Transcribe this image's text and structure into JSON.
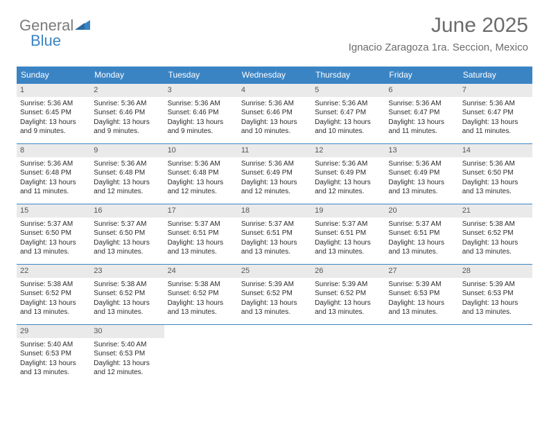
{
  "logo": {
    "text1": "General",
    "text2": "Blue",
    "color1": "#7a7a7a",
    "color2": "#3b84c4"
  },
  "header": {
    "title": "June 2025",
    "subtitle": "Ignacio Zaragoza 1ra. Seccion, Mexico",
    "title_fontsize": 30,
    "subtitle_fontsize": 15,
    "title_color": "#6b6b6b"
  },
  "calendar": {
    "type": "table",
    "header_bg": "#3b84c4",
    "header_fg": "#ffffff",
    "row_divider_color": "#3b84c4",
    "daynum_bg": "#eaeaea",
    "daynum_color": "#555555",
    "body_fontsize": 10,
    "columns": [
      "Sunday",
      "Monday",
      "Tuesday",
      "Wednesday",
      "Thursday",
      "Friday",
      "Saturday"
    ],
    "weeks": [
      [
        {
          "n": "1",
          "sr": "5:36 AM",
          "ss": "6:45 PM",
          "dl": "13 hours and 9 minutes."
        },
        {
          "n": "2",
          "sr": "5:36 AM",
          "ss": "6:46 PM",
          "dl": "13 hours and 9 minutes."
        },
        {
          "n": "3",
          "sr": "5:36 AM",
          "ss": "6:46 PM",
          "dl": "13 hours and 9 minutes."
        },
        {
          "n": "4",
          "sr": "5:36 AM",
          "ss": "6:46 PM",
          "dl": "13 hours and 10 minutes."
        },
        {
          "n": "5",
          "sr": "5:36 AM",
          "ss": "6:47 PM",
          "dl": "13 hours and 10 minutes."
        },
        {
          "n": "6",
          "sr": "5:36 AM",
          "ss": "6:47 PM",
          "dl": "13 hours and 11 minutes."
        },
        {
          "n": "7",
          "sr": "5:36 AM",
          "ss": "6:47 PM",
          "dl": "13 hours and 11 minutes."
        }
      ],
      [
        {
          "n": "8",
          "sr": "5:36 AM",
          "ss": "6:48 PM",
          "dl": "13 hours and 11 minutes."
        },
        {
          "n": "9",
          "sr": "5:36 AM",
          "ss": "6:48 PM",
          "dl": "13 hours and 12 minutes."
        },
        {
          "n": "10",
          "sr": "5:36 AM",
          "ss": "6:48 PM",
          "dl": "13 hours and 12 minutes."
        },
        {
          "n": "11",
          "sr": "5:36 AM",
          "ss": "6:49 PM",
          "dl": "13 hours and 12 minutes."
        },
        {
          "n": "12",
          "sr": "5:36 AM",
          "ss": "6:49 PM",
          "dl": "13 hours and 12 minutes."
        },
        {
          "n": "13",
          "sr": "5:36 AM",
          "ss": "6:49 PM",
          "dl": "13 hours and 13 minutes."
        },
        {
          "n": "14",
          "sr": "5:36 AM",
          "ss": "6:50 PM",
          "dl": "13 hours and 13 minutes."
        }
      ],
      [
        {
          "n": "15",
          "sr": "5:37 AM",
          "ss": "6:50 PM",
          "dl": "13 hours and 13 minutes."
        },
        {
          "n": "16",
          "sr": "5:37 AM",
          "ss": "6:50 PM",
          "dl": "13 hours and 13 minutes."
        },
        {
          "n": "17",
          "sr": "5:37 AM",
          "ss": "6:51 PM",
          "dl": "13 hours and 13 minutes."
        },
        {
          "n": "18",
          "sr": "5:37 AM",
          "ss": "6:51 PM",
          "dl": "13 hours and 13 minutes."
        },
        {
          "n": "19",
          "sr": "5:37 AM",
          "ss": "6:51 PM",
          "dl": "13 hours and 13 minutes."
        },
        {
          "n": "20",
          "sr": "5:37 AM",
          "ss": "6:51 PM",
          "dl": "13 hours and 13 minutes."
        },
        {
          "n": "21",
          "sr": "5:38 AM",
          "ss": "6:52 PM",
          "dl": "13 hours and 13 minutes."
        }
      ],
      [
        {
          "n": "22",
          "sr": "5:38 AM",
          "ss": "6:52 PM",
          "dl": "13 hours and 13 minutes."
        },
        {
          "n": "23",
          "sr": "5:38 AM",
          "ss": "6:52 PM",
          "dl": "13 hours and 13 minutes."
        },
        {
          "n": "24",
          "sr": "5:38 AM",
          "ss": "6:52 PM",
          "dl": "13 hours and 13 minutes."
        },
        {
          "n": "25",
          "sr": "5:39 AM",
          "ss": "6:52 PM",
          "dl": "13 hours and 13 minutes."
        },
        {
          "n": "26",
          "sr": "5:39 AM",
          "ss": "6:52 PM",
          "dl": "13 hours and 13 minutes."
        },
        {
          "n": "27",
          "sr": "5:39 AM",
          "ss": "6:53 PM",
          "dl": "13 hours and 13 minutes."
        },
        {
          "n": "28",
          "sr": "5:39 AM",
          "ss": "6:53 PM",
          "dl": "13 hours and 13 minutes."
        }
      ],
      [
        {
          "n": "29",
          "sr": "5:40 AM",
          "ss": "6:53 PM",
          "dl": "13 hours and 13 minutes."
        },
        {
          "n": "30",
          "sr": "5:40 AM",
          "ss": "6:53 PM",
          "dl": "13 hours and 12 minutes."
        },
        null,
        null,
        null,
        null,
        null
      ]
    ]
  },
  "labels": {
    "sunrise": "Sunrise:",
    "sunset": "Sunset:",
    "daylight": "Daylight:"
  }
}
